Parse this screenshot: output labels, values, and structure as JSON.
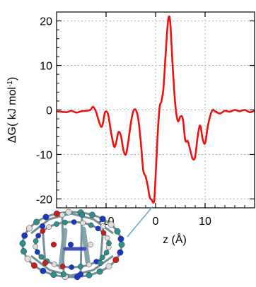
{
  "chart_data": {
    "type": "line",
    "title": "",
    "xlabel": "z (Å)",
    "ylabel": "ΔG( kJ mol⁻¹)",
    "ylabel_parts": {
      "main": "ΔG( kJ mol",
      "sup": "-1",
      "close": ")"
    },
    "xlim": [
      -20,
      20
    ],
    "ylim": [
      -22,
      22
    ],
    "grid": true,
    "x_ticks": [
      -10,
      0,
      10
    ],
    "x_tick_labels": [
      "-10",
      "0",
      "10"
    ],
    "y_ticks": [
      -20,
      -10,
      0,
      10,
      20
    ],
    "y_tick_labels": [
      "-20",
      "-10",
      "0",
      "10",
      "20"
    ],
    "line_color": "#ee1111",
    "series": [
      {
        "x": [
          -20,
          -18,
          -17,
          -16,
          -15,
          -14,
          -13.2,
          -12.6,
          -12.0,
          -11.6,
          -11.0,
          -10.6,
          -10.2,
          -9.6,
          -9.0,
          -8.4,
          -8.0,
          -7.5,
          -7.0,
          -6.5,
          -6.0,
          -5.5,
          -5.0,
          -4.5,
          -4.0,
          -3.5,
          -3.0,
          -2.5,
          -2.0,
          -1.6,
          -1.2,
          -0.8,
          -0.3,
          0.0,
          0.4,
          0.8,
          1.2,
          1.6,
          2.0,
          2.4,
          2.7,
          3.0,
          3.5,
          4.0,
          4.5,
          5.0,
          5.5,
          6.0,
          6.5,
          7.0,
          7.5,
          8.0,
          8.5,
          9.0,
          9.5,
          10.0,
          10.5,
          11.0,
          11.5,
          12.0,
          13.0,
          14.0,
          15.0,
          16.0,
          17.0,
          18.0,
          19.0,
          20.0
        ],
        "y": [
          -0.3,
          -0.5,
          -0.2,
          -0.6,
          -0.3,
          -0.2,
          0.0,
          0.7,
          -0.5,
          -2.0,
          -3.8,
          -2.8,
          -0.5,
          -1.0,
          -5.0,
          -8.2,
          -7.5,
          -5.0,
          -5.8,
          -9.0,
          -10.0,
          -7.0,
          -3.0,
          -0.3,
          0.0,
          -2.0,
          -7.0,
          -13.5,
          -15.0,
          -17.0,
          -19.5,
          -20.2,
          -20.5,
          -15.0,
          -6.0,
          0.5,
          2.0,
          5.0,
          12.0,
          18.5,
          21.0,
          19.0,
          9.0,
          1.0,
          -2.5,
          -1.5,
          -2.0,
          -6.8,
          -7.0,
          -9.0,
          -11.0,
          -10.5,
          -6.0,
          -3.5,
          -6.5,
          -7.5,
          -4.0,
          -1.5,
          0.0,
          -0.3,
          -0.8,
          -0.2,
          -0.4,
          0.0,
          -0.3,
          0.0,
          -0.5,
          -0.2
        ]
      }
    ]
  }
}
